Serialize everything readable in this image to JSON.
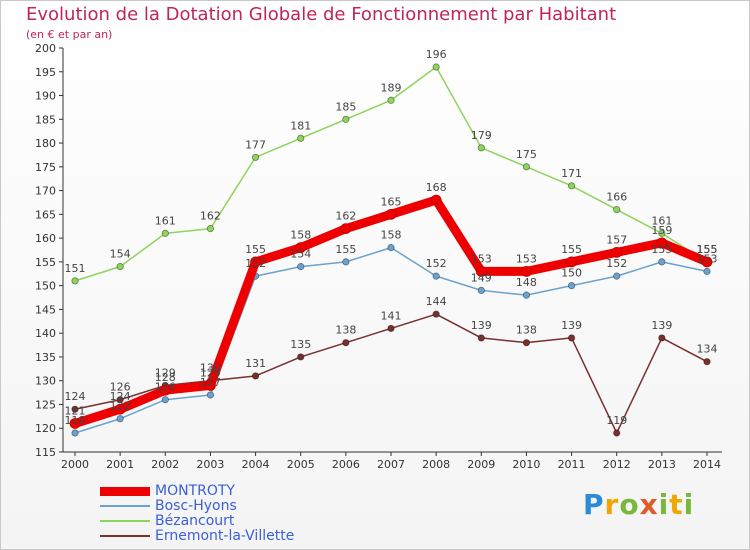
{
  "title": "Evolution de la Dotation Globale de Fonctionnement par Habitant",
  "subtitle": "(en € et par an)",
  "logo_text": "Proxiti",
  "chart_data": {
    "type": "line",
    "x": [
      "2000",
      "2001",
      "2002",
      "2003",
      "2004",
      "2005",
      "2006",
      "2007",
      "2008",
      "2009",
      "2010",
      "2011",
      "2012",
      "2013",
      "2014"
    ],
    "ylim": [
      115,
      200
    ],
    "yticks": [
      115,
      120,
      125,
      130,
      135,
      140,
      145,
      150,
      155,
      160,
      165,
      170,
      175,
      180,
      185,
      190,
      195,
      200
    ],
    "grid": false,
    "legend_position": "bottom-left",
    "series": [
      {
        "name": "MONTROTY",
        "color": "#ee0000",
        "values": [
          121,
          124,
          128,
          129,
          155,
          158,
          162,
          165,
          168,
          153,
          153,
          155,
          157,
          159,
          155
        ],
        "labels": [
          "121",
          "124",
          "128",
          "129",
          "155",
          "158",
          "162",
          "165",
          "168",
          "153",
          "153",
          "155",
          "157",
          "159",
          "155"
        ]
      },
      {
        "name": "Bosc-Hyons",
        "color": "#6aa3cf",
        "values": [
          119,
          122,
          126,
          127,
          152,
          154,
          155,
          158,
          152,
          149,
          148,
          150,
          152,
          155,
          153
        ],
        "labels": [
          "119",
          "122",
          "126",
          "127",
          "152",
          "154",
          "155",
          "158",
          "152",
          "149",
          "148",
          "150",
          "152",
          "155",
          "153"
        ]
      },
      {
        "name": "Bézancourt",
        "color": "#8ed45a",
        "values": [
          151,
          154,
          161,
          162,
          177,
          181,
          185,
          189,
          196,
          179,
          175,
          171,
          166,
          161,
          155
        ],
        "labels": [
          "151",
          "154",
          "161",
          "162",
          "177",
          "181",
          "185",
          "189",
          "196",
          "179",
          "175",
          "171",
          "166",
          "161",
          "155"
        ]
      },
      {
        "name": "Ernemont-la-Villette",
        "color": "#7a2f2f",
        "values": [
          124,
          126,
          129,
          130,
          131,
          135,
          138,
          141,
          144,
          139,
          138,
          139,
          119,
          139,
          134
        ],
        "labels": [
          "124",
          "126",
          "129",
          "130",
          "131",
          "135",
          "138",
          "141",
          "144",
          "139",
          "138",
          "139",
          "119",
          "139",
          "134"
        ]
      }
    ]
  }
}
